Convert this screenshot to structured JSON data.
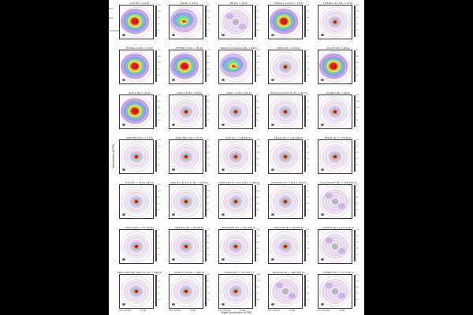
{
  "figure": {
    "ylabel": "Declination (ICRS)",
    "xlabel": "Right Ascension (ICRS)",
    "yticks": [
      "53.2\"",
      "53.0\"",
      "-36°26'52.8\""
    ],
    "xticks": [
      "17h17m25.84s",
      "25.80s"
    ],
    "panels": [
      {
        "title": "CCH (Eu = 42 K)",
        "ticks": [
          "12.0",
          "10.0",
          "8.0",
          "6.0",
          "4.0"
        ],
        "pattern": "hot"
      },
      {
        "title": "CN (Eu = 33 K)",
        "ticks": [
          "3.6",
          "3.0",
          "2.4",
          "1.8",
          "1.2"
        ],
        "pattern": "warm"
      },
      {
        "title": "NO (Eu = 36 K)",
        "ticks": [
          "1.4",
          "1.2",
          "1.0",
          "0.8",
          "0.6"
        ],
        "pattern": "cool"
      },
      {
        "title": "H13CO+ 3-2 (Eu = 25 K)",
        "ticks": [
          "6.4",
          "5.6",
          "4.8",
          "4.0",
          "3.2"
        ],
        "pattern": "hot"
      },
      {
        "title": "HC18O+ 4-3 (Eu = 41 K)",
        "ticks": [
          "1.8",
          "1.5",
          "1.2",
          "0.9",
          "0.6"
        ],
        "pattern": "point"
      },
      {
        "title": "H13CN 3-2 (Eu = 25 K)",
        "ticks": [
          "19.2",
          "16.0",
          "12.8",
          "9.6",
          "6.4"
        ],
        "pattern": "hot"
      },
      {
        "title": "HC15N 3-2 (Eu = 25 K)",
        "ticks": [
          "11.2",
          "9.6",
          "8.0",
          "6.4",
          "4.8"
        ],
        "pattern": "hot"
      },
      {
        "title": "H2CO 5(1,5)-4(1,4) (Eu = 62 K)",
        "ticks": [
          "14.4",
          "12.0",
          "9.6",
          "7.2",
          "4.8"
        ],
        "pattern": "warm"
      },
      {
        "title": "HDCO (Eu = 103 K)",
        "ticks": [
          "3.0",
          "2.5",
          "2.0",
          "1.5",
          "1.0"
        ],
        "pattern": "point"
      },
      {
        "title": "SiO 8-7 (Eu = 80 K)",
        "ticks": [
          "8.0",
          "6.4",
          "4.8",
          "3.2",
          "1.6"
        ],
        "pattern": "hot"
      },
      {
        "title": "CS 5-4 (Eu = 35 K)",
        "ticks": [
          "34.0",
          "28.0",
          "22.0",
          "16.0",
          "10.0"
        ],
        "pattern": "hot"
      },
      {
        "title": "C33S 7-6 (Eu = 65 K)",
        "ticks": [
          "4.8",
          "4.0",
          "3.2",
          "2.4",
          "1.6"
        ],
        "pattern": "point"
      },
      {
        "title": "C34S 7-6 (Eu = 65 K)",
        "ticks": [
          "9.6",
          "8.0",
          "6.4",
          "4.8",
          "3.2"
        ],
        "pattern": "point"
      },
      {
        "title": "H2CS 7(1,6)-6(1,5) (Eu = 60 K)",
        "ticks": [
          "2.8",
          "2.4",
          "2.0",
          "1.6",
          "1.2"
        ],
        "pattern": "point"
      },
      {
        "title": "SO N6-5 (Eu = 81 K)",
        "ticks": [
          "18.0",
          "15.0",
          "12.0",
          "9.0",
          "6.0"
        ],
        "pattern": "point"
      },
      {
        "title": "33SO N6-5 (Eu = 77 K)",
        "ticks": [
          "14.4",
          "12.0",
          "9.6",
          "7.2",
          "4.8"
        ],
        "pattern": "point"
      },
      {
        "title": "34SO N6-5 (Eu = 87 K)",
        "ticks": [
          "8.0",
          "6.4",
          "4.8",
          "3.2",
          "1.6"
        ],
        "pattern": "point"
      },
      {
        "title": "SO2 (Eu = 136-200 K)",
        "ticks": [
          "14.0",
          "12.0",
          "10.0",
          "8.0",
          "6.0"
        ],
        "pattern": "point"
      },
      {
        "title": "34SO2 (Eu = 119-160 K)",
        "ticks": [
          "4.8",
          "4.0",
          "3.2",
          "2.4",
          "1.6"
        ],
        "pattern": "point"
      },
      {
        "title": "33SO2 (Eu = 73-154 K)",
        "ticks": [
          "3.0",
          "2.5",
          "2.0",
          "1.5",
          "1.0"
        ],
        "pattern": "point"
      },
      {
        "title": "OCS (Eu = 237 & 254 K)",
        "ticks": [
          "12.0",
          "10.0",
          "8.0",
          "6.0",
          "4.0"
        ],
        "pattern": "point"
      },
      {
        "title": "HDO 3(3,1)-4(2,2) (Eu = 453 K)",
        "ticks": [
          "12.0",
          "10.0",
          "8.0",
          "6.0",
          "4.0"
        ],
        "pattern": "point"
      },
      {
        "title": "CH3OH 14(1)-13(2) E (Eu = 249 K)",
        "ticks": [
          "12.0",
          "10.0",
          "8.0",
          "6.0",
          "4.0"
        ],
        "pattern": "point"
      },
      {
        "title": "13CH3OH (Eu = 103 & 206 K)",
        "ticks": [
          "4.8",
          "4.0",
          "3.2",
          "2.4",
          "1.6"
        ],
        "pattern": "point"
      },
      {
        "title": "trans-HCOOH (Eu = 158-181 K)",
        "ticks": [
          "1.2",
          "1.0",
          "0.8",
          "0.6",
          "0.4"
        ],
        "pattern": "cool"
      },
      {
        "title": "H2CCO (Eu = 76-193 K)",
        "ticks": [
          "2.0",
          "1.6",
          "1.2",
          "0.8",
          "0.4"
        ],
        "pattern": "point"
      },
      {
        "title": "CH3CHO (Eu = 83-96 K)",
        "ticks": [
          "5.6",
          "4.8",
          "4.0",
          "3.2",
          "2.4"
        ],
        "pattern": "point"
      },
      {
        "title": "HCOOCH3 (Eu = 150-190 K)",
        "ticks": [
          "12.0",
          "10.0",
          "8.0",
          "6.0",
          "4.0"
        ],
        "pattern": "point"
      },
      {
        "title": "CH3OCH3 (Eu = 81-83 K)",
        "ticks": [
          "4.8",
          "4.0",
          "3.2",
          "2.4",
          "1.6"
        ],
        "pattern": "point"
      },
      {
        "title": "C2H5OH (Eu = 117-279 K)",
        "ticks": [
          "2.8",
          "2.4",
          "2.0",
          "1.6",
          "1.2"
        ],
        "pattern": "cool"
      },
      {
        "title": "HNCO 16(0,16)-15(0,15) (Eu = 186 K)",
        "ticks": [
          "8.0",
          "6.4",
          "4.8",
          "3.2",
          "1.6"
        ],
        "pattern": "point"
      },
      {
        "title": "HC3N 27-26 (Eu = 165 K)",
        "ticks": [
          "4.8",
          "4.0",
          "3.2",
          "2.4",
          "1.6"
        ],
        "pattern": "point"
      },
      {
        "title": "CH3CN (Eu = 171-257 K)",
        "ticks": [
          "14.4",
          "12.0",
          "9.6",
          "7.2",
          "4.8"
        ],
        "pattern": "point"
      },
      {
        "title": "NH2CHO (Eu = 186-580 K)",
        "ticks": [
          "2.0",
          "1.6",
          "1.2",
          "0.8",
          "0.4"
        ],
        "pattern": "cool"
      },
      {
        "title": "C2H5CN (Eu = 137-322 K)",
        "ticks": [
          "1.2",
          "1.0",
          "0.8",
          "0.6",
          "0.4"
        ],
        "pattern": "cool"
      }
    ]
  }
}
